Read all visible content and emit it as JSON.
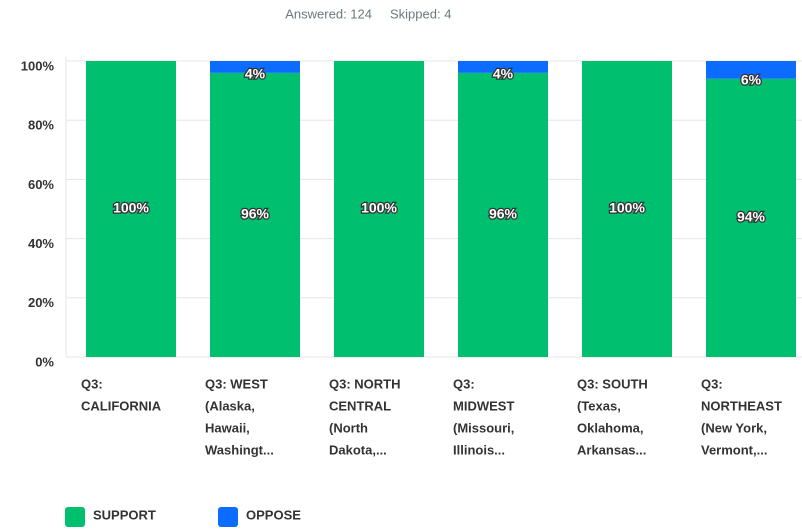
{
  "chart_data": {
    "type": "stacked_bar",
    "answered": "Answered: 124",
    "skipped": "Skipped: 4",
    "categories": [
      [
        "Q3:",
        "CALIFORNIA"
      ],
      [
        "Q3: WEST",
        "(Alaska,",
        "Hawaii,",
        "Washingt..."
      ],
      [
        "Q3: NORTH",
        "CENTRAL",
        "(North",
        "Dakota,..."
      ],
      [
        "Q3:",
        "MIDWEST",
        "(Missouri,",
        "Illinois..."
      ],
      [
        "Q3: SOUTH",
        "(Texas,",
        "Oklahoma,",
        "Arkansas..."
      ],
      [
        "Q3:",
        "NORTHEAST",
        "(New York,",
        "Vermont,..."
      ]
    ],
    "series": [
      {
        "name": "SUPPORT",
        "color": "#00bf6f",
        "values": [
          100,
          96,
          100,
          96,
          100,
          94
        ],
        "value_labels": [
          "100%",
          "96%",
          "100%",
          "96%",
          "100%",
          "94%"
        ]
      },
      {
        "name": "OPPOSE",
        "color": "#0b6cff",
        "values": [
          0,
          4,
          0,
          4,
          0,
          6
        ],
        "value_labels": [
          null,
          "4%",
          null,
          "4%",
          null,
          "6%"
        ]
      }
    ],
    "ylim": [
      0,
      100
    ],
    "yticks": [
      {
        "value": 0,
        "label": "0%"
      },
      {
        "value": 20,
        "label": "20%"
      },
      {
        "value": 40,
        "label": "40%"
      },
      {
        "value": 60,
        "label": "60%"
      },
      {
        "value": 80,
        "label": "80%"
      },
      {
        "value": 100,
        "label": "100%"
      }
    ],
    "grid": true
  }
}
